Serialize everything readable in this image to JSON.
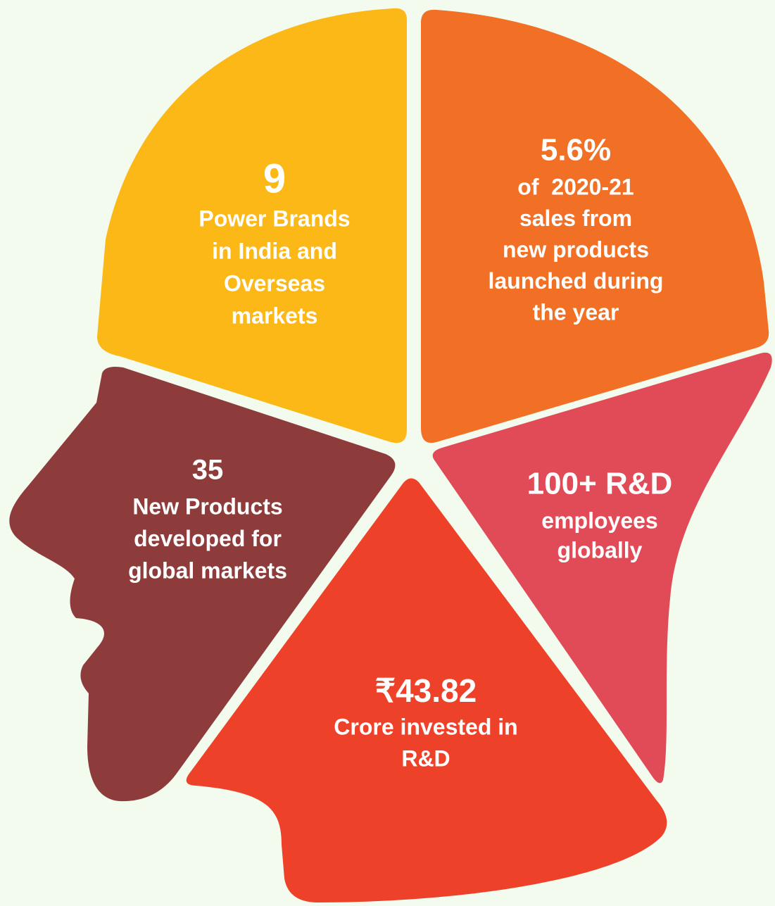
{
  "segments": [
    {
      "value": "9",
      "lines": [
        "Power Brands",
        "in India and",
        "Overseas",
        "markets"
      ],
      "color": "#FBB817"
    },
    {
      "value": "5.6%",
      "lines": [
        "of  2020-21",
        "sales from",
        "new products",
        "launched during",
        "the year"
      ],
      "color": "#F26F26"
    },
    {
      "value": "35",
      "lines": [
        "New Products",
        "developed for",
        "global markets"
      ],
      "color": "#8E3B3B"
    },
    {
      "value": "100+ R&D",
      "lines": [
        "employees",
        "globally"
      ],
      "color": "#E14B58"
    },
    {
      "value": "₹43.82",
      "lines": [
        "Crore invested in",
        "R&D"
      ],
      "color": "#EE412A"
    }
  ]
}
